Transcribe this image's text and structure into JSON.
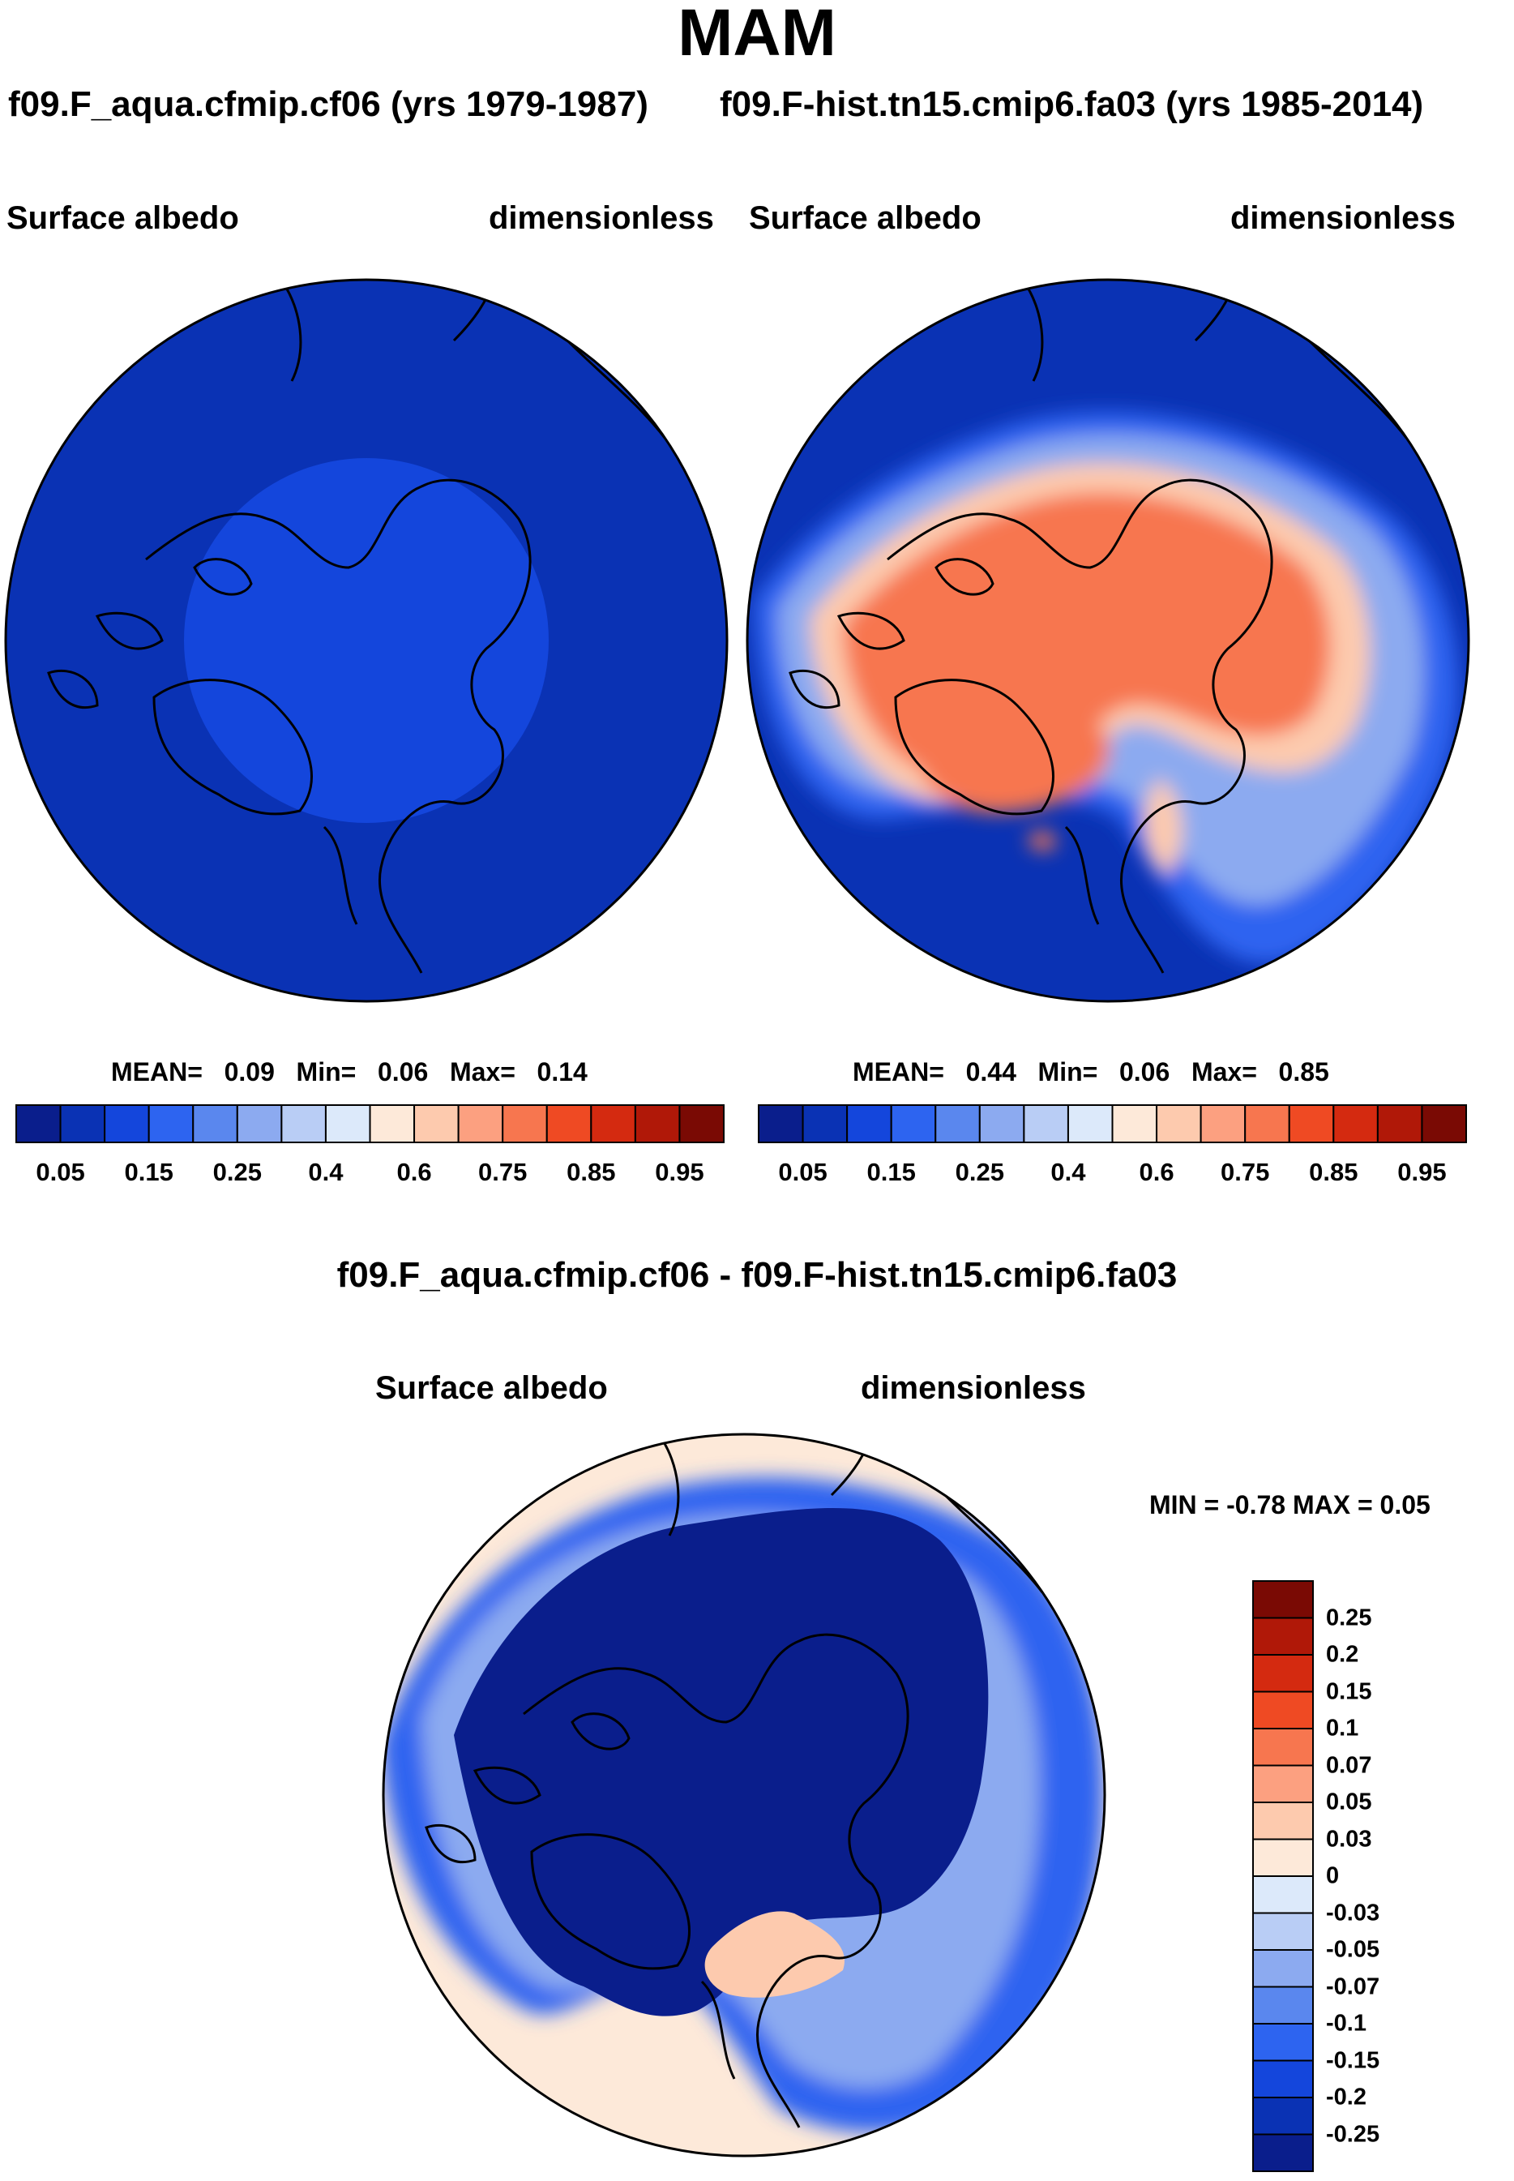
{
  "page": {
    "season_title": "MAM"
  },
  "panels": [
    {
      "run_title": "f09.F_aqua.cfmip.cf06 (yrs 1979-1987)",
      "variable": "Surface albedo",
      "units": "dimensionless",
      "mean_label": "MEAN=",
      "mean": "0.09",
      "min_label": "Min=",
      "min": "0.06",
      "max_label": "Max=",
      "max": "0.14"
    },
    {
      "run_title": "f09.F-hist.tn15.cmip6.fa03 (yrs 1985-2014)",
      "variable": "Surface albedo",
      "units": "dimensionless",
      "mean_label": "MEAN=",
      "mean": "0.44",
      "min_label": "Min=",
      "min": "0.06",
      "max_label": "Max=",
      "max": "0.85"
    },
    {
      "run_title": "f09.F_aqua.cfmip.cf06 - f09.F-hist.tn15.cmip6.fa03",
      "variable": "Surface albedo",
      "units": "dimensionless",
      "minmax_text": "MIN =  -0.78 MAX =   0.05"
    }
  ],
  "chart_data": [
    {
      "type": "heatmap",
      "projection": "polar-stereographic (north pole)",
      "title": "f09.F_aqua.cfmip.cf06 (yrs 1979-1987)",
      "variable": "Surface albedo",
      "units": "dimensionless",
      "field_summary": {
        "mean": 0.09,
        "min": 0.06,
        "max": 0.14
      },
      "colorbar": {
        "orientation": "horizontal",
        "levels": [
          0.05,
          0.1,
          0.15,
          0.2,
          0.25,
          0.3,
          0.4,
          0.5,
          0.6,
          0.7,
          0.75,
          0.8,
          0.85,
          0.9,
          0.95
        ],
        "tick_labels": [
          "0.05",
          "0.15",
          "0.25",
          "0.4",
          "0.6",
          "0.75",
          "0.85",
          "0.95"
        ],
        "colors": [
          "#0a1e8c",
          "#0a32b4",
          "#1446dc",
          "#2d64f0",
          "#5a87ee",
          "#8caaf0",
          "#b9cdf5",
          "#dce9fa",
          "#fde9d9",
          "#fdcaae",
          "#fca080",
          "#f7764f",
          "#ef4a23",
          "#d42a10",
          "#b01808",
          "#7a0a04"
        ]
      }
    },
    {
      "type": "heatmap",
      "projection": "polar-stereographic (north pole)",
      "title": "f09.F-hist.tn15.cmip6.fa03 (yrs 1985-2014)",
      "variable": "Surface albedo",
      "units": "dimensionless",
      "field_summary": {
        "mean": 0.44,
        "min": 0.06,
        "max": 0.85
      },
      "colorbar": {
        "orientation": "horizontal",
        "levels": [
          0.05,
          0.1,
          0.15,
          0.2,
          0.25,
          0.3,
          0.4,
          0.5,
          0.6,
          0.7,
          0.75,
          0.8,
          0.85,
          0.9,
          0.95
        ],
        "tick_labels": [
          "0.05",
          "0.15",
          "0.25",
          "0.4",
          "0.6",
          "0.75",
          "0.85",
          "0.95"
        ],
        "colors": [
          "#0a1e8c",
          "#0a32b4",
          "#1446dc",
          "#2d64f0",
          "#5a87ee",
          "#8caaf0",
          "#b9cdf5",
          "#dce9fa",
          "#fde9d9",
          "#fdcaae",
          "#fca080",
          "#f7764f",
          "#ef4a23",
          "#d42a10",
          "#b01808",
          "#7a0a04"
        ]
      }
    },
    {
      "type": "heatmap",
      "projection": "polar-stereographic (north pole)",
      "title": "f09.F_aqua.cfmip.cf06 - f09.F-hist.tn15.cmip6.fa03",
      "variable": "Surface albedo",
      "units": "dimensionless",
      "field_summary": {
        "min": -0.78,
        "max": 0.05
      },
      "colorbar": {
        "orientation": "vertical",
        "levels": [
          0.25,
          0.2,
          0.15,
          0.1,
          0.07,
          0.05,
          0.03,
          0,
          -0.03,
          -0.05,
          -0.07,
          -0.1,
          -0.15,
          -0.2,
          -0.25
        ],
        "tick_labels": [
          "0.25",
          "0.2",
          "0.15",
          "0.1",
          "0.07",
          "0.05",
          "0.03",
          "0",
          "-0.03",
          "-0.05",
          "-0.07",
          "-0.1",
          "-0.15",
          "-0.2",
          "-0.25"
        ],
        "colors": [
          "#7a0a04",
          "#b01808",
          "#d42a10",
          "#ef4a23",
          "#f7764f",
          "#fca080",
          "#fdcaae",
          "#fde9d9",
          "#dce9fa",
          "#b9cdf5",
          "#8caaf0",
          "#5a87ee",
          "#2d64f0",
          "#1446dc",
          "#0a32b4",
          "#0a1e8c"
        ]
      }
    }
  ]
}
